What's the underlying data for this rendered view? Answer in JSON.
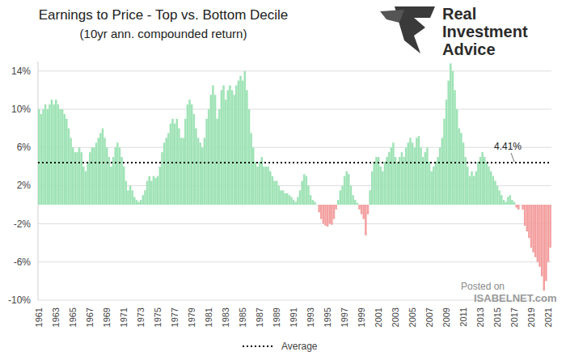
{
  "chart_data": {
    "type": "bar",
    "title": "Earnings to Price - Top vs. Bottom Decile",
    "subtitle": "(10yr ann. compounded return)",
    "logo_text": [
      "Real",
      "Investment",
      "Advice"
    ],
    "watermark": [
      "Posted on",
      "ISABELNET.com"
    ],
    "categories": [
      "1961",
      null,
      null,
      null,
      null,
      null,
      null,
      null,
      "1963",
      null,
      null,
      null,
      null,
      null,
      null,
      null,
      "1965",
      null,
      null,
      null,
      null,
      null,
      null,
      null,
      "1967",
      null,
      null,
      null,
      null,
      null,
      null,
      null,
      "1969",
      null,
      null,
      null,
      null,
      null,
      null,
      null,
      "1971",
      null,
      null,
      null,
      null,
      null,
      null,
      null,
      "1973",
      null,
      null,
      null,
      null,
      null,
      null,
      null,
      "1975",
      null,
      null,
      null,
      null,
      null,
      null,
      null,
      "1977",
      null,
      null,
      null,
      null,
      null,
      null,
      null,
      "1979",
      null,
      null,
      null,
      null,
      null,
      null,
      null,
      "1981",
      null,
      null,
      null,
      null,
      null,
      null,
      null,
      "1983",
      null,
      null,
      null,
      null,
      null,
      null,
      null,
      "1985",
      null,
      null,
      null,
      null,
      null,
      null,
      null,
      "1987",
      null,
      null,
      null,
      null,
      null,
      null,
      null,
      "1989",
      null,
      null,
      null,
      null,
      null,
      null,
      null,
      "1991",
      null,
      null,
      null,
      null,
      null,
      null,
      null,
      "1993",
      null,
      null,
      null,
      null,
      null,
      null,
      null,
      "1995",
      null,
      null,
      null,
      null,
      null,
      null,
      null,
      "1997",
      null,
      null,
      null,
      null,
      null,
      null,
      null,
      "1999",
      null,
      null,
      null,
      null,
      null,
      null,
      null,
      "2001",
      null,
      null,
      null,
      null,
      null,
      null,
      null,
      "2003",
      null,
      null,
      null,
      null,
      null,
      null,
      null,
      "2005",
      null,
      null,
      null,
      null,
      null,
      null,
      null,
      "2007",
      null,
      null,
      null,
      null,
      null,
      null,
      null,
      "2009",
      null,
      null,
      null,
      null,
      null,
      null,
      null,
      "2011",
      null,
      null,
      null,
      null,
      null,
      null,
      null,
      "2013",
      null,
      null,
      null,
      null,
      null,
      null,
      null,
      "2015",
      null,
      null,
      null,
      null,
      null,
      null,
      null,
      "2017",
      null,
      null,
      null,
      null,
      null,
      null,
      null,
      "2019",
      null,
      null,
      null,
      null,
      null,
      null,
      null,
      "2021",
      null
    ],
    "values": [
      10,
      9.5,
      10,
      10.5,
      10,
      10.5,
      11,
      10.5,
      11,
      10.5,
      10,
      10,
      9.5,
      9,
      8,
      7,
      6,
      5.5,
      5.5,
      6,
      5.5,
      4,
      3.5,
      4.5,
      5.5,
      6,
      6,
      6.5,
      7,
      7.5,
      8,
      7,
      6,
      5,
      4,
      5,
      6,
      6.5,
      6,
      5,
      4,
      2.5,
      1.5,
      2,
      1.5,
      0.8,
      0.5,
      0.3,
      0.5,
      1,
      1.5,
      2.5,
      3,
      2.5,
      3,
      2.8,
      3,
      4,
      5.5,
      6.5,
      7,
      7.5,
      8.5,
      9,
      8.5,
      9,
      8,
      7,
      7,
      9,
      10.5,
      11,
      10.5,
      9.5,
      8,
      7,
      6.5,
      6,
      7,
      9,
      10,
      11.5,
      12.5,
      11.5,
      9,
      10,
      12,
      12.5,
      11,
      12,
      12.5,
      12,
      11.5,
      12.5,
      13,
      13.5,
      13,
      14,
      12,
      10,
      7.5,
      6,
      4.5,
      4,
      4.5,
      5,
      4,
      4,
      4,
      3.5,
      3,
      2.5,
      2.5,
      2,
      1.5,
      1.5,
      1.2,
      1.2,
      1,
      0.8,
      0.5,
      0.3,
      0.8,
      1.5,
      2.5,
      3.2,
      3,
      2,
      1,
      0.5,
      0.3,
      0,
      -0.8,
      -1.5,
      -2,
      -2.2,
      -2.3,
      -2,
      -2.1,
      -1.5,
      -0.5,
      0.5,
      1.5,
      2,
      3,
      3.5,
      3.2,
      2,
      1,
      0.5,
      0.2,
      -0.5,
      -1,
      -1.5,
      -3.2,
      -1,
      1.5,
      3.5,
      4.5,
      5,
      5,
      4,
      3.5,
      4.5,
      5,
      5.5,
      6,
      6.5,
      5,
      4.5,
      5,
      5.5,
      5,
      6,
      6.5,
      7,
      6.5,
      6,
      7,
      7.2,
      6,
      5,
      5.5,
      6,
      4.5,
      3.5,
      4,
      4.5,
      5,
      6,
      7,
      9,
      11,
      13,
      14.8,
      14,
      12,
      10,
      8,
      7.5,
      6.5,
      5,
      4,
      3,
      3.5,
      3,
      3.5,
      4.5,
      5,
      5.5,
      5,
      4.5,
      4,
      3.5,
      3,
      2.5,
      2,
      1.5,
      1,
      0.5,
      0.3,
      0.8,
      1,
      0.5,
      0.3,
      -0.3,
      -0.5,
      0,
      -0.5,
      -2.2,
      -2.8,
      -3.5,
      -4.5,
      -5,
      -5.5,
      -6,
      -6.5,
      -7.5,
      -9,
      -8,
      -6,
      -4.5
    ],
    "colors": [
      "#9fe3b6",
      "#9fe3b6",
      "#9fe3b6",
      "#9fe3b6",
      "#9fe3b6",
      "#9fe3b6",
      "#9fe3b6",
      "#9fe3b6",
      "#9fe3b6",
      "#9fe3b6",
      "#9fe3b6",
      "#9fe3b6",
      "#9fe3b6",
      "#9fe3b6",
      "#9fe3b6",
      "#9fe3b6",
      "#9fe3b6",
      "#9fe3b6",
      "#9fe3b6",
      "#9fe3b6",
      "#9fe3b6",
      "#9fe3b6",
      "#9fe3b6",
      "#9fe3b6",
      "#9fe3b6",
      "#9fe3b6",
      "#9fe3b6",
      "#9fe3b6",
      "#9fe3b6",
      "#9fe3b6",
      "#9fe3b6",
      "#9fe3b6",
      "#9fe3b6",
      "#9fe3b6",
      "#9fe3b6",
      "#9fe3b6",
      "#9fe3b6",
      "#9fe3b6",
      "#9fe3b6",
      "#9fe3b6",
      "#9fe3b6",
      "#9fe3b6",
      "#9fe3b6",
      "#9fe3b6",
      "#9fe3b6",
      "#9fe3b6",
      "#9fe3b6",
      "#9fe3b6",
      "#9fe3b6",
      "#9fe3b6",
      "#9fe3b6",
      "#9fe3b6",
      "#9fe3b6",
      "#9fe3b6",
      "#9fe3b6",
      "#9fe3b6",
      "#9fe3b6",
      "#9fe3b6",
      "#9fe3b6",
      "#9fe3b6",
      "#9fe3b6",
      "#9fe3b6",
      "#9fe3b6",
      "#9fe3b6",
      "#9fe3b6",
      "#9fe3b6",
      "#9fe3b6",
      "#9fe3b6",
      "#9fe3b6",
      "#9fe3b6",
      "#9fe3b6",
      "#9fe3b6",
      "#9fe3b6",
      "#9fe3b6",
      "#9fe3b6",
      "#9fe3b6",
      "#9fe3b6",
      "#9fe3b6",
      "#9fe3b6",
      "#9fe3b6",
      "#9fe3b6",
      "#9fe3b6",
      "#9fe3b6",
      "#9fe3b6",
      "#9fe3b6",
      "#9fe3b6",
      "#9fe3b6",
      "#9fe3b6",
      "#9fe3b6",
      "#9fe3b6",
      "#9fe3b6",
      "#9fe3b6",
      "#9fe3b6",
      "#9fe3b6",
      "#9fe3b6",
      "#9fe3b6",
      "#9fe3b6",
      "#9fe3b6",
      "#9fe3b6",
      "#9fe3b6",
      "#9fe3b6",
      "#9fe3b6",
      "#9fe3b6",
      "#9fe3b6",
      "#9fe3b6",
      "#9fe3b6",
      "#9fe3b6",
      "#9fe3b6",
      "#9fe3b6",
      "#9fe3b6",
      "#9fe3b6",
      "#9fe3b6",
      "#9fe3b6",
      "#9fe3b6",
      "#9fe3b6",
      "#9fe3b6",
      "#9fe3b6",
      "#9fe3b6",
      "#9fe3b6",
      "#9fe3b6",
      "#9fe3b6",
      "#9fe3b6",
      "#9fe3b6",
      "#9fe3b6",
      "#9fe3b6",
      "#9fe3b6",
      "#9fe3b6",
      "#9fe3b6",
      "#9fe3b6",
      "#9fe3b6",
      "#9fe3b6",
      "#9fe3b6",
      "#f4a0a0",
      "#f4a0a0",
      "#f4a0a0",
      "#f4a0a0",
      "#f4a0a0",
      "#f4a0a0",
      "#f4a0a0",
      "#f4a0a0",
      "#f4a0a0",
      "#9fe3b6",
      "#9fe3b6",
      "#9fe3b6",
      "#9fe3b6",
      "#9fe3b6",
      "#9fe3b6",
      "#9fe3b6",
      "#9fe3b6",
      "#9fe3b6",
      "#9fe3b6",
      "#f4a0a0",
      "#f4a0a0",
      "#f4a0a0",
      "#f4a0a0",
      "#f4a0a0",
      "#9fe3b6",
      "#9fe3b6",
      "#9fe3b6",
      "#9fe3b6",
      "#9fe3b6",
      "#9fe3b6",
      "#9fe3b6",
      "#9fe3b6",
      "#9fe3b6",
      "#9fe3b6",
      "#9fe3b6",
      "#9fe3b6",
      "#9fe3b6",
      "#9fe3b6",
      "#9fe3b6",
      "#9fe3b6",
      "#9fe3b6",
      "#9fe3b6",
      "#9fe3b6",
      "#9fe3b6",
      "#9fe3b6",
      "#9fe3b6",
      "#9fe3b6",
      "#9fe3b6",
      "#9fe3b6",
      "#9fe3b6",
      "#9fe3b6",
      "#9fe3b6",
      "#9fe3b6",
      "#9fe3b6",
      "#9fe3b6",
      "#9fe3b6",
      "#9fe3b6",
      "#9fe3b6",
      "#9fe3b6",
      "#9fe3b6",
      "#9fe3b6",
      "#9fe3b6",
      "#9fe3b6",
      "#9fe3b6",
      "#9fe3b6",
      "#9fe3b6",
      "#9fe3b6",
      "#9fe3b6",
      "#9fe3b6",
      "#9fe3b6",
      "#9fe3b6",
      "#9fe3b6",
      "#9fe3b6",
      "#9fe3b6",
      "#9fe3b6",
      "#9fe3b6",
      "#9fe3b6",
      "#9fe3b6",
      "#9fe3b6",
      "#9fe3b6",
      "#9fe3b6",
      "#9fe3b6",
      "#9fe3b6",
      "#9fe3b6",
      "#9fe3b6",
      "#9fe3b6",
      "#9fe3b6",
      "#9fe3b6",
      "#9fe3b6",
      "#9fe3b6",
      "#9fe3b6",
      "#9fe3b6",
      "#9fe3b6",
      "#f4a0a0",
      "#f4a0a0",
      "#9fe3b6",
      "#f4a0a0",
      "#f4a0a0",
      "#f4a0a0",
      "#f4a0a0",
      "#f4a0a0",
      "#f4a0a0",
      "#f4a0a0",
      "#f4a0a0",
      "#f4a0a0",
      "#f4a0a0",
      "#f4a0a0",
      "#f4a0a0",
      "#f4a0a0",
      "#f4a0a0"
    ],
    "ylim": [
      -10,
      15
    ],
    "yticks": [
      {
        "value": -10,
        "label": "-10%"
      },
      {
        "value": -6,
        "label": "-6%"
      },
      {
        "value": -2,
        "label": "-2%"
      },
      {
        "value": 2,
        "label": "2%"
      },
      {
        "value": 6,
        "label": "6%"
      },
      {
        "value": 10,
        "label": "10%"
      },
      {
        "value": 14,
        "label": "14%"
      }
    ],
    "grid": true,
    "reference_line": {
      "name": "Average",
      "value": 4.41,
      "label": "4.41%",
      "color": "#000000",
      "line_style": "dotted"
    }
  }
}
